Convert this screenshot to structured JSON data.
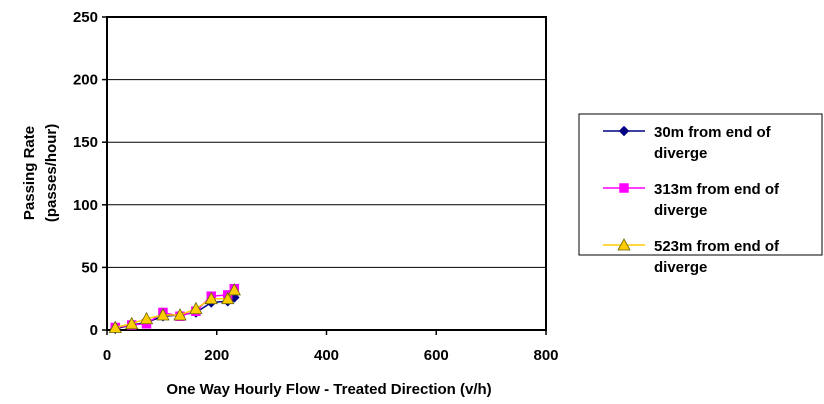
{
  "chart_data": {
    "type": "line",
    "title": "",
    "xlabel": "One Way Hourly Flow - Treated Direction (v/h)",
    "ylabel_line1": "Passing Rate",
    "ylabel_line2": "(passes/hour)",
    "xlim": [
      0,
      800
    ],
    "ylim": [
      0,
      250
    ],
    "x_ticks": [
      "0",
      "200",
      "400",
      "600",
      "800"
    ],
    "y_ticks": [
      "0",
      "50",
      "100",
      "150",
      "200",
      "250"
    ],
    "grid": "horizontal",
    "legend_position": "right",
    "series": [
      {
        "name_line1": "30m from end of",
        "name_line2": "diverge",
        "color": "#000080",
        "marker": "diamond",
        "x": [
          15,
          45,
          72,
          102,
          133,
          162,
          190,
          220,
          232
        ],
        "y": [
          1,
          4,
          6,
          11,
          12,
          14,
          22,
          23,
          26
        ]
      },
      {
        "name_line1": "313m from end of",
        "name_line2": "diverge",
        "color": "#ff00ff",
        "marker": "square",
        "x": [
          15,
          45,
          72,
          102,
          133,
          162,
          190,
          220,
          232
        ],
        "y": [
          2,
          4,
          5,
          14,
          11,
          15,
          27,
          28,
          33
        ]
      },
      {
        "name_line1": "523m from end of",
        "name_line2": "diverge",
        "color": "#ffcc00",
        "marker": "triangle",
        "x": [
          15,
          45,
          72,
          102,
          133,
          162,
          190,
          220,
          232
        ],
        "y": [
          2,
          5,
          9,
          12,
          12,
          17,
          25,
          25,
          32
        ]
      }
    ]
  }
}
